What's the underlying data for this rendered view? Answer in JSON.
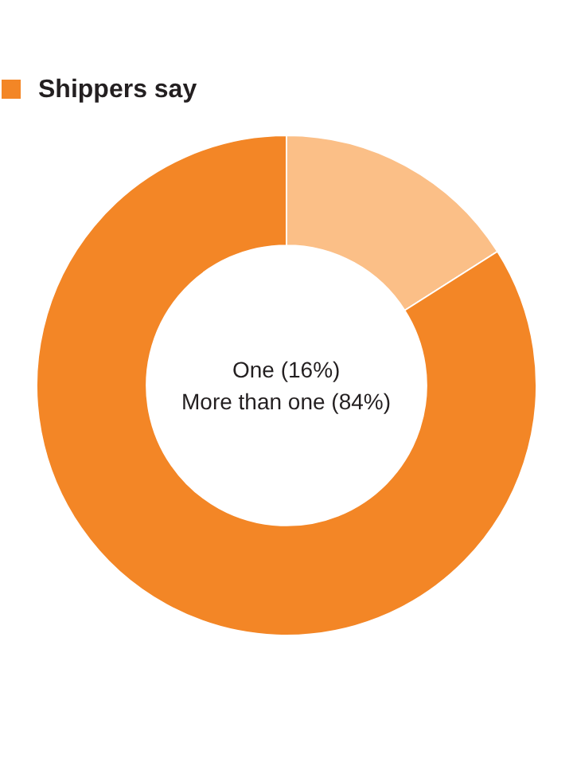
{
  "chart_data": {
    "type": "donut",
    "categories": [
      "One",
      "More than one"
    ],
    "series": [
      {
        "name": "Shippers say",
        "color": "#f38626",
        "values": [
          16,
          84
        ],
        "colors": [
          "#fbbf87",
          "#f38626"
        ],
        "value_labels": [
          "(16%)",
          "(84%)"
        ]
      }
    ],
    "legend": "top left"
  }
}
